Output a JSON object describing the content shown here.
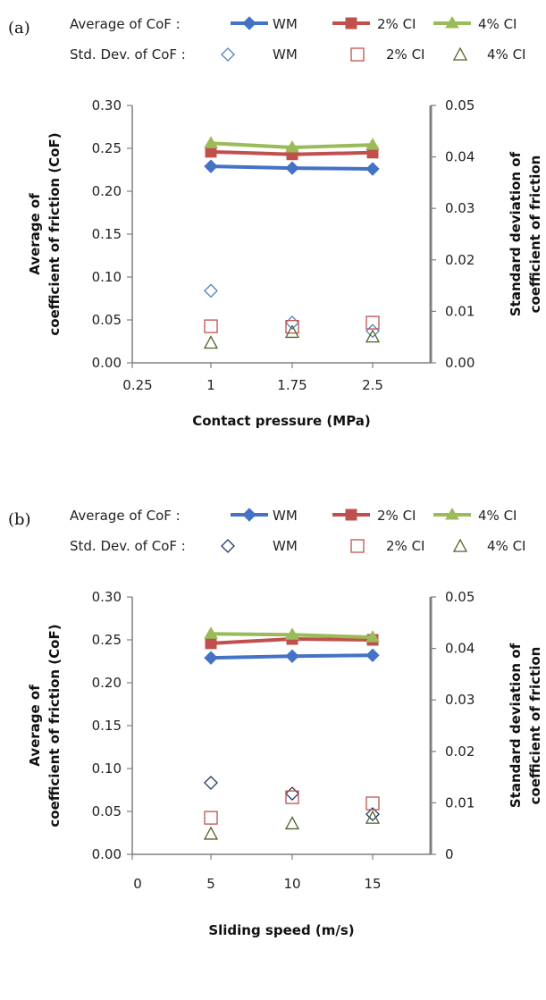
{
  "chart_data": [
    {
      "type": "line",
      "panel_label": "(a)",
      "legend": {
        "average_label": "Average of CoF  :",
        "stddev_label": "Std. Dev. of CoF :",
        "entries": [
          "WM",
          "2% CI",
          "4% CI"
        ]
      },
      "xlabel": "Contact pressure (MPa)",
      "ylabel_lines": [
        "Average of",
        "coefficient of friction (CoF)"
      ],
      "y2label_lines": [
        "Standard deviation of",
        "coefficient of friction"
      ],
      "x_ticks": [
        "0.25",
        "1",
        "1.75",
        "2.5"
      ],
      "x_values": [
        "1",
        "1.75",
        "2.5"
      ],
      "y_ticks": [
        "0.00",
        "0.05",
        "0.10",
        "0.15",
        "0.20",
        "0.25",
        "0.30"
      ],
      "y2_ticks": [
        "0.00",
        "0.01",
        "0.02",
        "0.03",
        "0.04",
        "0.05"
      ],
      "ylim": [
        0,
        0.3
      ],
      "y2lim": [
        0,
        0.05
      ],
      "series": [
        {
          "name": "WM",
          "axis": "primary",
          "kind": "average",
          "color": "#4472C4",
          "values": [
            0.229,
            0.227,
            0.226
          ]
        },
        {
          "name": "2% CI",
          "axis": "primary",
          "kind": "average",
          "color": "#C0504D",
          "values": [
            0.246,
            0.243,
            0.245
          ]
        },
        {
          "name": "4% CI",
          "axis": "primary",
          "kind": "average",
          "color": "#9BBB59",
          "values": [
            0.256,
            0.251,
            0.254
          ]
        },
        {
          "name": "WM",
          "axis": "secondary",
          "kind": "stddev",
          "color": "#4F81BD",
          "values": [
            0.014,
            0.0078,
            0.0062
          ]
        },
        {
          "name": "2% CI",
          "axis": "secondary",
          "kind": "stddev",
          "color": "#C0504D",
          "values": [
            0.0071,
            0.007,
            0.0078
          ]
        },
        {
          "name": "4% CI",
          "axis": "secondary",
          "kind": "stddev",
          "color": "#4F6228",
          "values": [
            0.0039,
            0.006,
            0.0051
          ]
        }
      ]
    },
    {
      "type": "line",
      "panel_label": "(b)",
      "legend": {
        "average_label": "Average of CoF  :",
        "stddev_label": "Std. Dev. of CoF :",
        "entries": [
          "WM",
          "2% CI",
          "4% CI"
        ]
      },
      "xlabel": "Sliding speed (m/s)",
      "ylabel_lines": [
        "Average of",
        "coefficient of friction (CoF)"
      ],
      "y2label_lines": [
        "Standard deviation of",
        "coefficient of friction"
      ],
      "x_ticks": [
        "0",
        "5",
        "10",
        "15"
      ],
      "x_values": [
        "5",
        "10",
        "15"
      ],
      "y_ticks": [
        "0.00",
        "0.05",
        "0.10",
        "0.15",
        "0.20",
        "0.25",
        "0.30"
      ],
      "y2_ticks": [
        "0",
        "0.01",
        "0.02",
        "0.03",
        "0.04",
        "0.05"
      ],
      "ylim": [
        0,
        0.3
      ],
      "y2lim": [
        0,
        0.05
      ],
      "series": [
        {
          "name": "WM",
          "axis": "primary",
          "kind": "average",
          "color": "#4472C4",
          "values": [
            0.229,
            0.231,
            0.232
          ]
        },
        {
          "name": "2% CI",
          "axis": "primary",
          "kind": "average",
          "color": "#C0504D",
          "values": [
            0.246,
            0.251,
            0.25
          ]
        },
        {
          "name": "4% CI",
          "axis": "primary",
          "kind": "average",
          "color": "#9BBB59",
          "values": [
            0.257,
            0.256,
            0.253
          ]
        },
        {
          "name": "WM",
          "axis": "secondary",
          "kind": "stddev",
          "color": "#1F3864",
          "values": [
            0.0139,
            0.0118,
            0.0078
          ]
        },
        {
          "name": "2% CI",
          "axis": "secondary",
          "kind": "stddev",
          "color": "#C0504D",
          "values": [
            0.0071,
            0.0111,
            0.0099
          ]
        },
        {
          "name": "4% CI",
          "axis": "secondary",
          "kind": "stddev",
          "color": "#4F6228",
          "values": [
            0.004,
            0.006,
            0.0071
          ]
        }
      ]
    }
  ]
}
